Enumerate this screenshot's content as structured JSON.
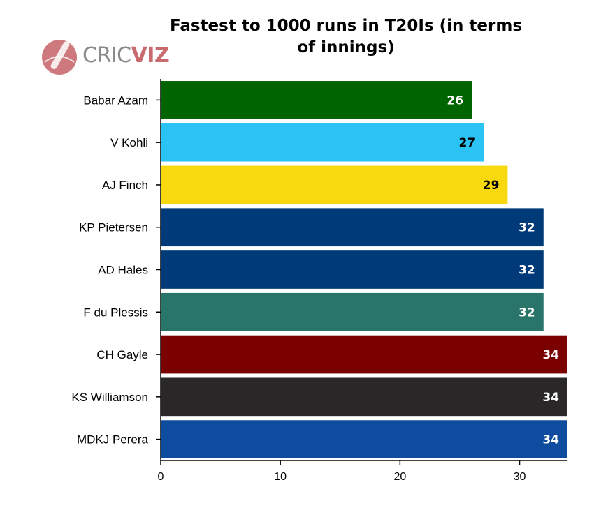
{
  "logo": {
    "part1": "CRIC",
    "part2": "VIZ"
  },
  "chart_data": {
    "type": "bar",
    "orientation": "horizontal",
    "title": "Fastest to 1000 runs in T20Is (in terms of innings)",
    "categories": [
      "Babar Azam",
      "V Kohli",
      "AJ Finch",
      "KP Pietersen",
      "AD Hales",
      "F du Plessis",
      "CH Gayle",
      "KS Williamson",
      "MDKJ Perera"
    ],
    "values": [
      26,
      27,
      29,
      32,
      32,
      32,
      34,
      34,
      34
    ],
    "bar_colors": [
      "#006400",
      "#2bc3f4",
      "#f7d90d",
      "#003a78",
      "#003a78",
      "#2a7569",
      "#7b0000",
      "#2a2728",
      "#0d4c9e"
    ],
    "label_colors": [
      "#ffffff",
      "#000000",
      "#000000",
      "#ffffff",
      "#ffffff",
      "#ffffff",
      "#ffffff",
      "#ffffff",
      "#ffffff"
    ],
    "xticks": [
      0,
      10,
      20,
      30
    ],
    "xlim": [
      0,
      34
    ],
    "xlabel": "",
    "ylabel": "",
    "grid": false,
    "legend": "none",
    "data_labels": true
  }
}
